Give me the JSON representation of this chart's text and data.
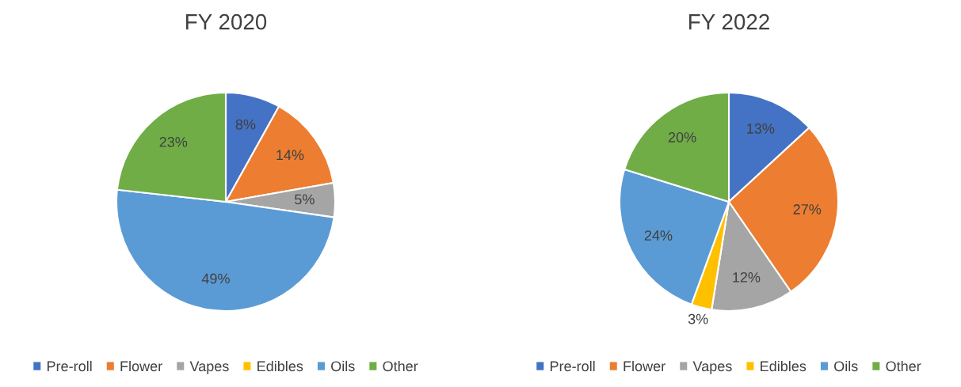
{
  "chart_data": [
    {
      "type": "pie",
      "title": "FY 2020",
      "categories": [
        "Pre-roll",
        "Flower",
        "Vapes",
        "Edibles",
        "Oils",
        "Other"
      ],
      "values": [
        8,
        14,
        5,
        0,
        49,
        23
      ],
      "value_labels": [
        "8%",
        "14%",
        "5%",
        null,
        "49%",
        "23%"
      ],
      "colors": [
        "#4472c4",
        "#ed7d31",
        "#a5a5a5",
        "#ffc000",
        "#5b9bd5",
        "#70ad47"
      ],
      "legend": "bottom"
    },
    {
      "type": "pie",
      "title": "FY 2022",
      "categories": [
        "Pre-roll",
        "Flower",
        "Vapes",
        "Edibles",
        "Oils",
        "Other"
      ],
      "values": [
        13,
        27,
        12,
        3,
        24,
        20
      ],
      "value_labels": [
        "13%",
        "27%",
        "12%",
        "3%",
        "24%",
        "20%"
      ],
      "colors": [
        "#4472c4",
        "#ed7d31",
        "#a5a5a5",
        "#ffc000",
        "#5b9bd5",
        "#70ad47"
      ],
      "legend": "bottom"
    }
  ]
}
